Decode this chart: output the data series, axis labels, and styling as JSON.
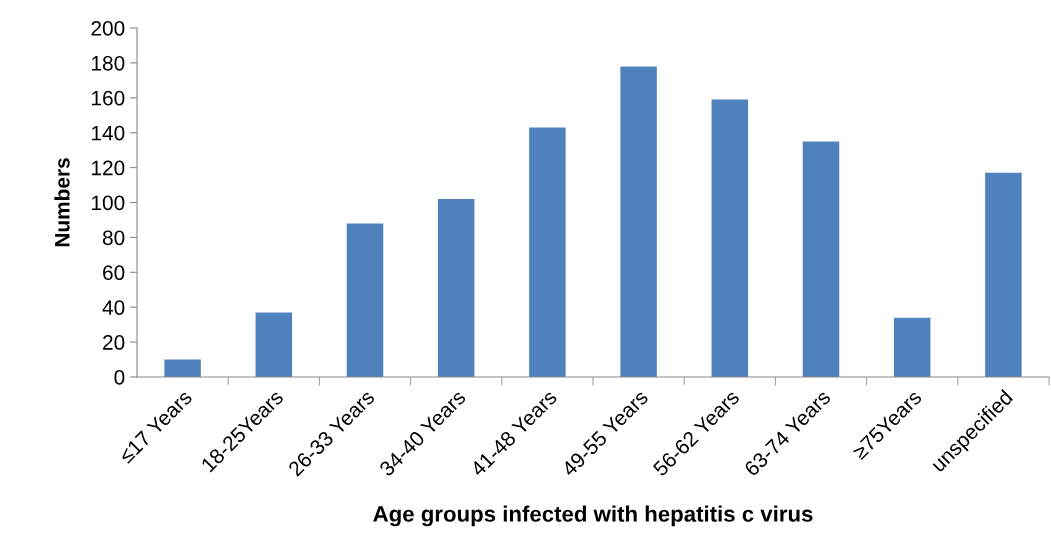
{
  "chart_data": {
    "type": "bar",
    "xlabel": "Age groups infected with hepatitis c virus",
    "ylabel": "Numbers",
    "categories": [
      "≤17 Years",
      "18-25Years",
      "26-33 Years",
      "34-40 Years",
      "41-48 Years",
      "49-55 Years",
      "56-62 Years",
      "63-74 Years",
      "≥75Years",
      "unspecified"
    ],
    "values": [
      10,
      37,
      88,
      102,
      143,
      178,
      159,
      135,
      34,
      117
    ],
    "color": "#4f81bd",
    "ylim": [
      0,
      200
    ],
    "yticks": [
      0,
      20,
      40,
      60,
      80,
      100,
      120,
      140,
      160,
      180,
      200
    ],
    "grid": false,
    "legend": false
  }
}
